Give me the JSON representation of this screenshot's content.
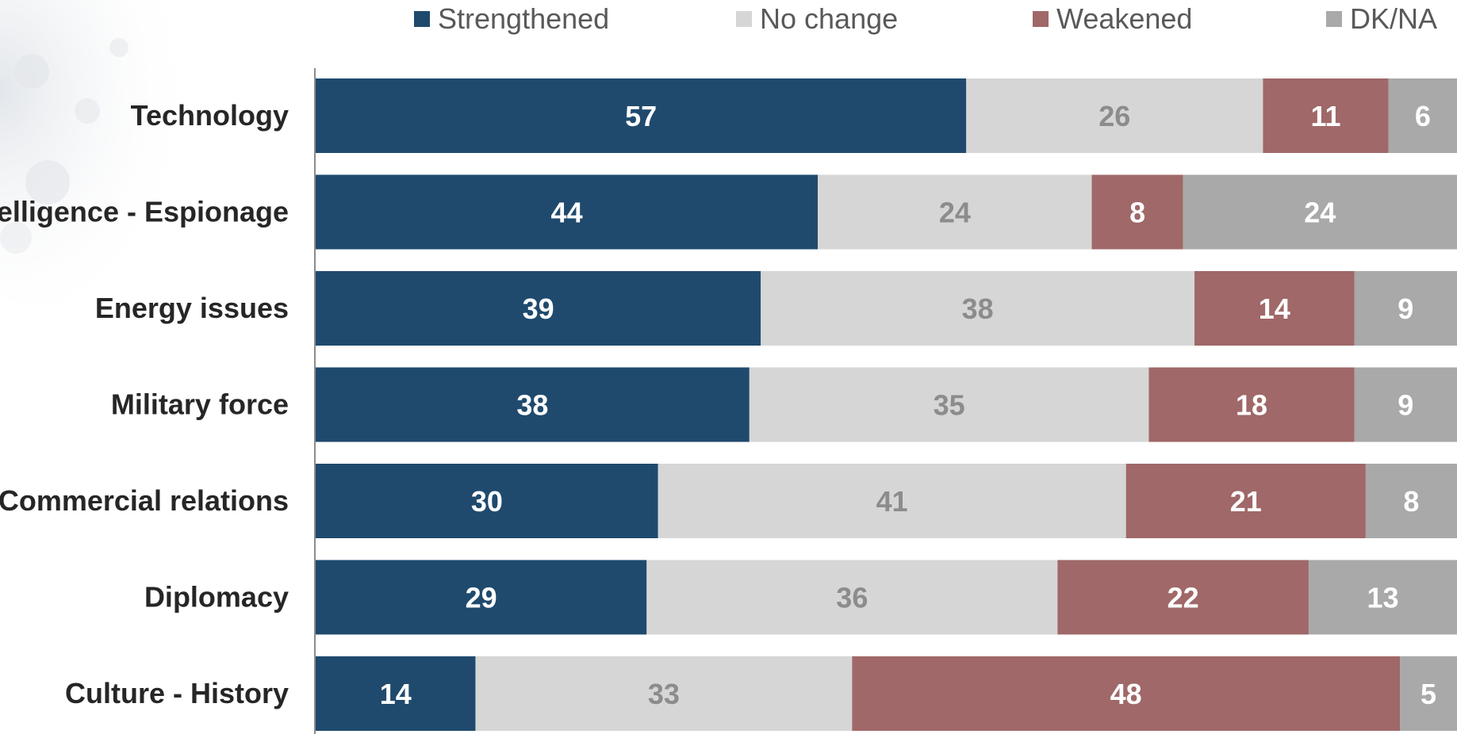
{
  "chart_data": {
    "type": "bar",
    "orientation": "horizontal",
    "stacked": true,
    "categories": [
      "Technology",
      "Intelligence - Espionage",
      "Energy issues",
      "Military force",
      "Commercial relations",
      "Diplomacy",
      "Culture - History"
    ],
    "series": [
      {
        "name": "Strengthened",
        "color": "#1f4a6e",
        "label_color": "#ffffff",
        "values": [
          57,
          44,
          39,
          38,
          30,
          29,
          14
        ]
      },
      {
        "name": "No change",
        "color": "#d6d6d6",
        "label_color": "#8c8c8c",
        "values": [
          26,
          24,
          38,
          35,
          41,
          36,
          33
        ]
      },
      {
        "name": "Weakened",
        "color": "#a06868",
        "label_color": "#ffffff",
        "values": [
          11,
          8,
          14,
          18,
          21,
          22,
          48
        ]
      },
      {
        "name": "DK/NA",
        "color": "#a9a9a9",
        "label_color": "#ffffff",
        "values": [
          6,
          24,
          9,
          9,
          8,
          13,
          5
        ]
      }
    ],
    "xlim": [
      0,
      100
    ],
    "legend_position": "top",
    "grid": false,
    "title": "",
    "xlabel": "",
    "ylabel": ""
  }
}
